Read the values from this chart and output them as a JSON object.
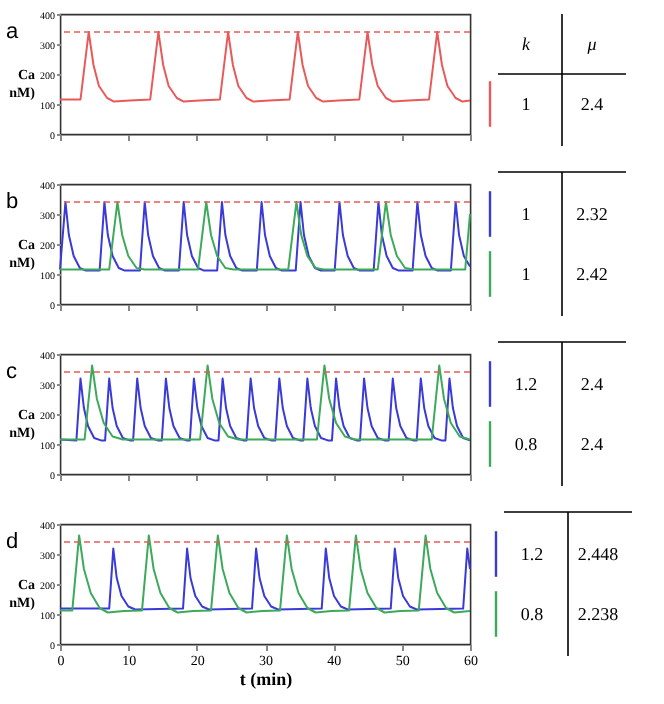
{
  "chart_data": [
    {
      "type": "line",
      "title": "a",
      "ylabel": "Ca\nnM)",
      "xlim": [
        0,
        60
      ],
      "xticks": [
        0,
        10,
        20,
        30,
        40,
        50,
        60
      ],
      "ylim": [
        0,
        400
      ],
      "yticks": [
        0,
        100,
        200,
        300,
        400
      ],
      "tick_labels": "y",
      "annotations": [
        "k",
        "μ",
        "1",
        "2.4"
      ],
      "ref_lines": [
        {
          "axis": "y",
          "value": 340,
          "color": "#e85a5a",
          "line_style": "dashed"
        }
      ],
      "series": [
        {
          "color": "#e85a5a",
          "x": [
            0,
            3.0,
            4.2,
            4.9,
            5.7,
            6.9,
            7.9,
            10.2,
            13.2,
            14.4,
            15.1,
            15.9,
            17.1,
            18.1,
            20.4,
            23.4,
            24.6,
            25.3,
            26.1,
            27.3,
            28.3,
            30.6,
            33.6,
            34.8,
            35.5,
            36.3,
            37.5,
            38.5,
            40.8,
            43.8,
            45.0,
            45.7,
            46.5,
            47.7,
            48.7,
            51.0,
            54.0,
            55.2,
            55.9,
            56.7,
            57.9,
            58.9,
            60
          ],
          "values": [
            115,
            115,
            340,
            230,
            160,
            120,
            108,
            112,
            115,
            340,
            230,
            160,
            120,
            108,
            112,
            115,
            340,
            230,
            160,
            120,
            108,
            112,
            115,
            340,
            230,
            160,
            120,
            108,
            112,
            115,
            340,
            230,
            160,
            120,
            108,
            112,
            115,
            340,
            230,
            160,
            120,
            108,
            112
          ]
        }
      ]
    },
    {
      "type": "line",
      "title": "b",
      "ylabel": "Ca\nnM)",
      "xlim": [
        0,
        60
      ],
      "xticks": [
        0,
        10,
        20,
        30,
        40,
        50,
        60
      ],
      "ylim": [
        0,
        400
      ],
      "yticks": [
        0,
        100,
        200,
        300,
        400
      ],
      "tick_labels": "y",
      "annotations": [
        "1",
        "2.32",
        "1",
        "2.42"
      ],
      "ref_lines": [
        {
          "axis": "y",
          "value": 340,
          "color": "#e85a5a",
          "line_style": "dashed"
        }
      ],
      "series": [
        {
          "color": "#3a3ad8",
          "x": [
            0,
            0.8,
            1.3,
            2.0,
            2.9,
            3.7,
            5.8,
            6.5,
            7.0,
            7.7,
            8.6,
            9.4,
            11.7,
            12.4,
            12.9,
            13.6,
            14.5,
            15.3,
            17.4,
            18.1,
            18.6,
            19.3,
            20.2,
            21.0,
            23.0,
            23.7,
            24.2,
            24.9,
            25.8,
            26.6,
            28.8,
            29.5,
            30.0,
            30.7,
            31.6,
            32.4,
            34.5,
            35.2,
            35.7,
            36.4,
            37.3,
            38.1,
            40.2,
            40.9,
            41.4,
            42.1,
            43.0,
            43.8,
            45.9,
            46.6,
            47.1,
            47.8,
            48.7,
            49.5,
            51.6,
            52.3,
            52.8,
            53.5,
            54.4,
            55.2,
            57.2,
            57.9,
            58.4,
            59.1,
            60
          ],
          "values": [
            115,
            340,
            230,
            160,
            120,
            112,
            112,
            340,
            230,
            160,
            120,
            112,
            112,
            340,
            230,
            160,
            120,
            112,
            112,
            340,
            230,
            160,
            120,
            112,
            112,
            340,
            230,
            160,
            120,
            112,
            112,
            340,
            230,
            160,
            120,
            112,
            112,
            340,
            230,
            160,
            120,
            112,
            112,
            340,
            230,
            160,
            120,
            112,
            112,
            340,
            230,
            160,
            120,
            112,
            112,
            340,
            230,
            160,
            120,
            112,
            112,
            340,
            230,
            160,
            125
          ]
        },
        {
          "color": "#3caa5a",
          "x": [
            0,
            7.2,
            8.4,
            9.1,
            10.0,
            11.2,
            12.4,
            20.2,
            21.4,
            22.1,
            23.0,
            24.2,
            25.4,
            33.4,
            34.6,
            35.3,
            36.2,
            37.4,
            38.6,
            46.5,
            47.7,
            48.4,
            49.3,
            50.5,
            51.7,
            59.3,
            60
          ],
          "values": [
            115,
            115,
            340,
            230,
            160,
            120,
            115,
            115,
            340,
            230,
            160,
            120,
            115,
            115,
            340,
            230,
            160,
            120,
            115,
            115,
            340,
            230,
            160,
            120,
            115,
            115,
            300
          ]
        }
      ]
    },
    {
      "type": "line",
      "title": "c",
      "ylabel": "Ca\nnM)",
      "xlim": [
        0,
        60
      ],
      "xticks": [
        0,
        10,
        20,
        30,
        40,
        50,
        60
      ],
      "ylim": [
        0,
        400
      ],
      "yticks": [
        0,
        100,
        200,
        300,
        400
      ],
      "tick_labels": "y",
      "annotations": [
        "1.2",
        "2.4",
        "0.8",
        "2.4"
      ],
      "ref_lines": [
        {
          "axis": "y",
          "value": 340,
          "color": "#e85a5a",
          "line_style": "dashed"
        }
      ],
      "series": [
        {
          "color": "#3a3ad8",
          "x": [
            0,
            2.4,
            3.0,
            3.5,
            4.1,
            5.0,
            6.0,
            6.6,
            7.2,
            7.7,
            8.3,
            9.2,
            10.2,
            10.7,
            11.3,
            11.8,
            12.4,
            13.3,
            14.3,
            14.9,
            15.5,
            16.0,
            16.6,
            17.5,
            18.5,
            19.0,
            19.6,
            20.1,
            20.7,
            21.6,
            22.6,
            23.2,
            23.8,
            24.3,
            24.9,
            25.8,
            26.8,
            27.3,
            27.9,
            28.4,
            29.0,
            29.9,
            30.9,
            31.5,
            32.1,
            32.6,
            33.2,
            34.1,
            35.1,
            35.6,
            36.2,
            36.7,
            37.3,
            38.2,
            39.2,
            39.8,
            40.4,
            40.9,
            41.5,
            42.4,
            43.4,
            43.9,
            44.5,
            45.0,
            45.6,
            46.5,
            47.5,
            48.1,
            48.7,
            49.2,
            49.8,
            50.7,
            51.7,
            52.2,
            52.8,
            53.3,
            53.9,
            54.8,
            55.8,
            56.4,
            57.0,
            57.5,
            58.1,
            59.0,
            60
          ],
          "values": [
            115,
            112,
            318,
            220,
            160,
            120,
            112,
            112,
            318,
            220,
            160,
            120,
            112,
            112,
            318,
            220,
            160,
            120,
            112,
            112,
            318,
            220,
            160,
            120,
            112,
            112,
            318,
            220,
            160,
            120,
            112,
            112,
            318,
            220,
            160,
            120,
            112,
            112,
            318,
            220,
            160,
            120,
            112,
            112,
            318,
            220,
            160,
            120,
            112,
            112,
            318,
            220,
            160,
            120,
            112,
            112,
            318,
            220,
            160,
            120,
            112,
            112,
            318,
            220,
            160,
            120,
            112,
            112,
            318,
            220,
            160,
            120,
            112,
            112,
            318,
            220,
            160,
            120,
            112,
            112,
            318,
            220,
            160,
            120,
            112
          ]
        },
        {
          "color": "#3caa5a",
          "x": [
            0,
            3.6,
            4.7,
            5.4,
            6.4,
            7.7,
            9.2,
            20.5,
            21.6,
            22.3,
            23.3,
            24.6,
            26.1,
            37.6,
            38.7,
            39.4,
            40.4,
            41.7,
            43.2,
            54.4,
            55.5,
            56.2,
            57.2,
            58.5,
            60
          ],
          "values": [
            115,
            115,
            362,
            250,
            170,
            125,
            115,
            115,
            362,
            250,
            170,
            125,
            115,
            115,
            362,
            250,
            170,
            125,
            115,
            115,
            362,
            250,
            170,
            125,
            115
          ]
        }
      ]
    },
    {
      "type": "line",
      "title": "d",
      "ylabel": "Ca\nnM)",
      "xlabel": "t (min)",
      "xlim": [
        0,
        60
      ],
      "xticks": [
        0,
        10,
        20,
        30,
        40,
        50,
        60
      ],
      "ylim": [
        0,
        400
      ],
      "yticks": [
        0,
        100,
        200,
        300,
        400
      ],
      "annotations": [
        "1.2",
        "2.448",
        "0.8",
        "2.238"
      ],
      "ref_lines": [
        {
          "axis": "y",
          "value": 340,
          "color": "#e85a5a",
          "line_style": "dashed"
        }
      ],
      "series": [
        {
          "color": "#3a3ad8",
          "x": [
            0,
            7.2,
            7.8,
            8.3,
            9.0,
            10.0,
            11.0,
            18.0,
            18.6,
            19.1,
            19.8,
            20.8,
            21.8,
            28.1,
            28.7,
            29.2,
            29.9,
            30.9,
            31.9,
            38.3,
            38.9,
            39.4,
            40.1,
            41.1,
            42.1,
            48.4,
            49.0,
            49.5,
            50.2,
            51.2,
            52.2,
            59.0,
            59.6,
            60
          ],
          "values": [
            118,
            118,
            318,
            220,
            160,
            125,
            115,
            118,
            318,
            220,
            160,
            125,
            115,
            118,
            318,
            220,
            160,
            125,
            115,
            118,
            318,
            220,
            160,
            125,
            115,
            118,
            318,
            220,
            160,
            125,
            115,
            118,
            318,
            250
          ]
        },
        {
          "color": "#3caa5a",
          "x": [
            0,
            1.8,
            2.8,
            3.5,
            4.5,
            5.8,
            7.0,
            9.3,
            12.0,
            13.0,
            13.7,
            14.7,
            16.0,
            17.2,
            19.5,
            22.1,
            23.1,
            23.8,
            24.8,
            26.1,
            27.3,
            29.6,
            32.2,
            33.2,
            33.9,
            34.9,
            36.2,
            37.4,
            39.7,
            42.3,
            43.3,
            44.0,
            45.0,
            46.3,
            47.5,
            49.8,
            52.5,
            53.5,
            54.2,
            55.2,
            56.5,
            57.7,
            60
          ],
          "values": [
            112,
            112,
            362,
            250,
            170,
            120,
            105,
            110,
            112,
            362,
            250,
            170,
            120,
            105,
            110,
            112,
            362,
            250,
            170,
            120,
            105,
            110,
            112,
            362,
            250,
            170,
            120,
            105,
            110,
            112,
            362,
            250,
            170,
            120,
            105,
            110,
            112,
            362,
            250,
            170,
            120,
            105,
            110
          ]
        }
      ]
    }
  ]
}
